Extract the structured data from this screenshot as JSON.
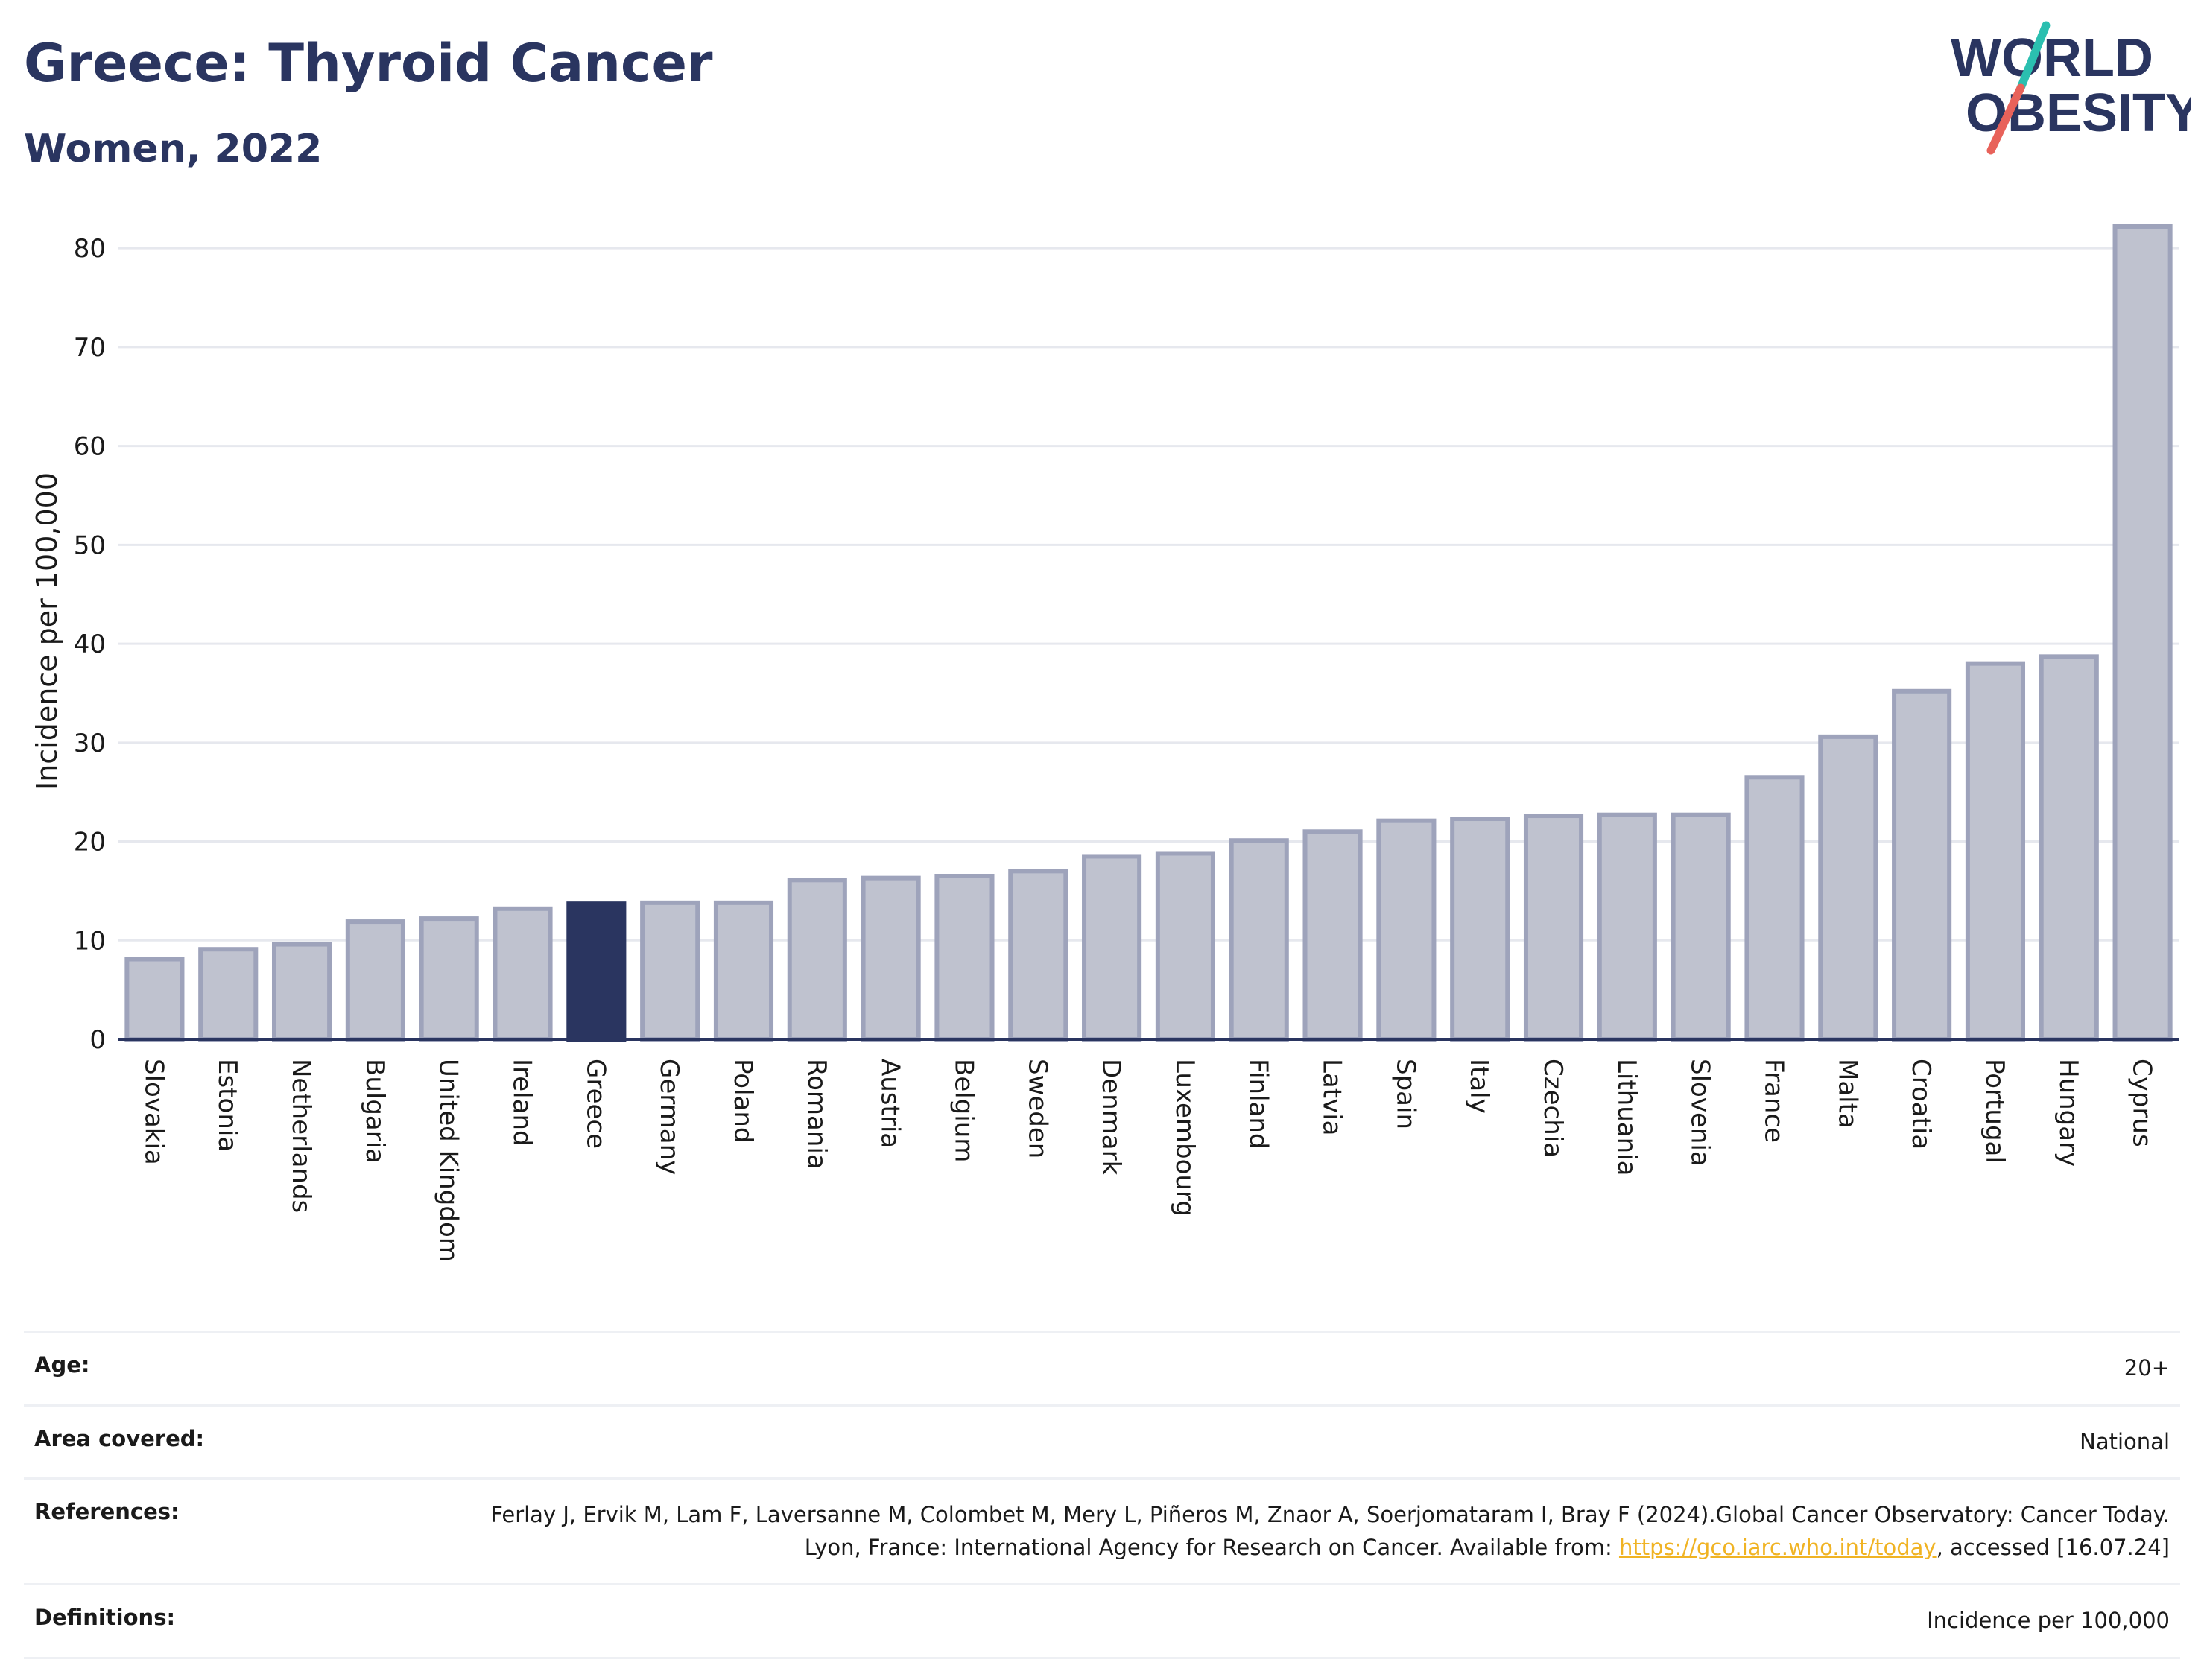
{
  "header": {
    "title": "Greece: Thyroid Cancer",
    "subtitle": "Women, 2022"
  },
  "logo": {
    "line1": "WORLD",
    "line2": "OBESITY",
    "slash_colors": [
      "#2bbfb0",
      "#e8625a"
    ],
    "text_color": "#2a3560"
  },
  "colors": {
    "bar": "#bfc2cf",
    "bar_border": "#9ea3bb",
    "highlight": "#2a3560",
    "grid": "#e6e8ee",
    "axis_text": "#1a1a1a"
  },
  "chart_data": {
    "type": "bar",
    "title": "Greece: Thyroid Cancer",
    "subtitle": "Women, 2022",
    "xlabel": "",
    "ylabel": "Incidence per 100,000",
    "ylim": [
      0,
      82.5
    ],
    "yticks": [
      0,
      10,
      20,
      30,
      40,
      50,
      60,
      70,
      80
    ],
    "grid": true,
    "highlight": "Greece",
    "categories": [
      "Slovakia",
      "Estonia",
      "Netherlands",
      "Bulgaria",
      "United Kingdom",
      "Ireland",
      "Greece",
      "Germany",
      "Poland",
      "Romania",
      "Austria",
      "Belgium",
      "Sweden",
      "Denmark",
      "Luxembourg",
      "Finland",
      "Latvia",
      "Spain",
      "Italy",
      "Czechia",
      "Lithuania",
      "Slovenia",
      "France",
      "Malta",
      "Croatia",
      "Portugal",
      "Hungary",
      "Cyprus"
    ],
    "values": [
      8.1,
      9.1,
      9.6,
      11.9,
      12.2,
      13.2,
      13.7,
      13.8,
      13.8,
      16.1,
      16.3,
      16.5,
      17.0,
      18.5,
      18.8,
      20.1,
      21.0,
      22.1,
      22.3,
      22.6,
      22.7,
      22.7,
      26.5,
      30.6,
      35.2,
      38.0,
      38.7,
      82.2
    ]
  },
  "info": {
    "age_label": "Age:",
    "age_value": "20+",
    "area_label": "Area covered:",
    "area_value": "National",
    "references_label": "References:",
    "references_text1": "Ferlay J, Ervik M, Lam F, Laversanne M, Colombet M, Mery L, Piñeros M, Znaor A, Soerjomataram I, Bray F (2024).Global Cancer Observatory: Cancer Today. Lyon, France: International Agency for Research on Cancer. Available from: ",
    "references_link": "https://gco.iarc.who.int/today",
    "references_text2": ", accessed [16.07.24]",
    "definitions_label": "Definitions:",
    "definitions_value": "Incidence per 100,000"
  }
}
